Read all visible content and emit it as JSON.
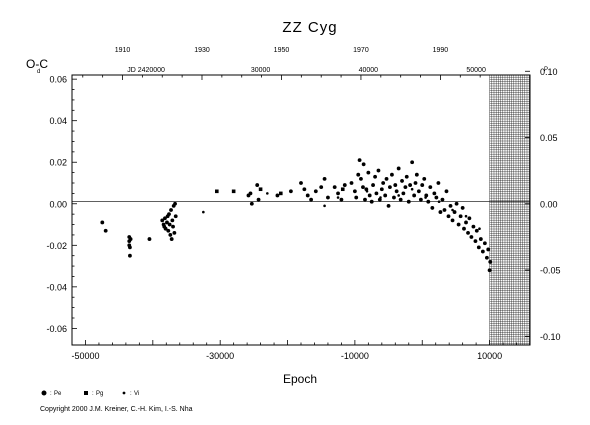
{
  "chart_data": {
    "type": "scatter",
    "title": "ZZ Cyg",
    "xlabel": "Epoch",
    "ylabel": "O-C",
    "left_unit": "d",
    "right_unit": "P",
    "xlim": [
      -52000,
      16000
    ],
    "ylim": [
      -0.068,
      0.062
    ],
    "x_ticks": [
      "-50000",
      "-30000",
      "-10000",
      "10000"
    ],
    "x_tick_values": [
      -50000,
      -30000,
      -10000,
      10000
    ],
    "y_ticks": [
      "0.06",
      "0.04",
      "0.02",
      "0.00",
      "-0.02",
      "-0.04",
      "-0.06"
    ],
    "y_tick_values": [
      0.06,
      0.04,
      0.02,
      0.0,
      -0.02,
      -0.04,
      -0.06
    ],
    "right_ticks": [
      "0.10",
      "0.05",
      "0.00",
      "-0.05",
      "-0.10"
    ],
    "right_tick_values": [
      0.0638,
      0.0319,
      0.0,
      -0.0319,
      -0.0638
    ],
    "year_ticks": [
      "1910",
      "1930",
      "1950",
      "1970",
      "1990"
    ],
    "year_tick_epochs": [
      -44500,
      -32700,
      -20900,
      -9100,
      2700
    ],
    "jd_labels": [
      "JD 2420000",
      "30000",
      "40000",
      "50000"
    ],
    "jd_label_epochs": [
      -41000,
      -24000,
      -8000,
      8000
    ],
    "hatched_region": [
      10000,
      16000
    ],
    "legend": [
      "Pe",
      "Pg",
      "Vi"
    ],
    "series": [
      {
        "name": "Pe",
        "marker": "circle",
        "values": [
          [
            -47500,
            -0.009
          ],
          [
            -47000,
            -0.013
          ],
          [
            -43500,
            -0.016
          ],
          [
            -43500,
            -0.018
          ],
          [
            -43500,
            -0.02
          ],
          [
            -43400,
            -0.021
          ],
          [
            -43400,
            -0.025
          ],
          [
            -43300,
            -0.017
          ],
          [
            -40500,
            -0.017
          ],
          [
            -38600,
            -0.008
          ],
          [
            -38400,
            -0.01
          ],
          [
            -38300,
            -0.011
          ],
          [
            -38200,
            -0.007
          ],
          [
            -38100,
            -0.012
          ],
          [
            -37900,
            -0.009
          ],
          [
            -37800,
            -0.006
          ],
          [
            -37700,
            -0.013
          ],
          [
            -37600,
            -0.005
          ],
          [
            -37500,
            -0.01
          ],
          [
            -37400,
            -0.015
          ],
          [
            -37300,
            -0.003
          ],
          [
            -37200,
            -0.017
          ],
          [
            -37100,
            -0.008
          ],
          [
            -37000,
            -0.011
          ],
          [
            -36900,
            -0.001
          ],
          [
            -36800,
            -0.014
          ],
          [
            -36700,
            0.0
          ],
          [
            -36600,
            -0.006
          ],
          [
            -25800,
            0.004
          ],
          [
            -25500,
            0.005
          ],
          [
            -25300,
            0.0
          ],
          [
            -24500,
            0.009
          ],
          [
            -24300,
            0.002
          ],
          [
            -21500,
            0.004
          ],
          [
            -19500,
            0.006
          ],
          [
            -18000,
            0.01
          ],
          [
            -17500,
            0.007
          ],
          [
            -17000,
            0.004
          ],
          [
            -16500,
            0.002
          ],
          [
            -15800,
            0.006
          ],
          [
            -15000,
            0.008
          ],
          [
            -14500,
            0.012
          ],
          [
            -14000,
            0.003
          ],
          [
            -13000,
            0.008
          ],
          [
            -12500,
            0.005
          ],
          [
            -12000,
            0.002
          ],
          [
            -11500,
            0.009
          ],
          [
            -10500,
            0.01
          ],
          [
            -10000,
            0.006
          ],
          [
            -9800,
            0.003
          ],
          [
            -9500,
            0.014
          ],
          [
            -9300,
            0.021
          ],
          [
            -9100,
            0.012
          ],
          [
            -8800,
            0.008
          ],
          [
            -8700,
            0.019
          ],
          [
            -8500,
            0.002
          ],
          [
            -8300,
            0.007
          ],
          [
            -8000,
            0.015
          ],
          [
            -7800,
            0.004
          ],
          [
            -7500,
            0.001
          ],
          [
            -7300,
            0.009
          ],
          [
            -7000,
            0.013
          ],
          [
            -6800,
            0.005
          ],
          [
            -6500,
            0.016
          ],
          [
            -6300,
            0.002
          ],
          [
            -6000,
            0.007
          ],
          [
            -5800,
            0.01
          ],
          [
            -5500,
            0.004
          ],
          [
            -5300,
            0.012
          ],
          [
            -5000,
            -0.001
          ],
          [
            -4800,
            0.008
          ],
          [
            -4500,
            0.014
          ],
          [
            -4200,
            0.003
          ],
          [
            -4000,
            0.009
          ],
          [
            -3800,
            0.006
          ],
          [
            -3500,
            0.017
          ],
          [
            -3200,
            0.002
          ],
          [
            -3000,
            0.011
          ],
          [
            -2800,
            0.005
          ],
          [
            -2500,
            0.008
          ],
          [
            -2300,
            0.013
          ],
          [
            -2000,
            0.001
          ],
          [
            -1800,
            0.009
          ],
          [
            -1500,
            0.02
          ],
          [
            -1200,
            0.004
          ],
          [
            -1000,
            0.01
          ],
          [
            -800,
            0.014
          ],
          [
            -500,
            0.006
          ],
          [
            -200,
            0.002
          ],
          [
            0,
            0.009
          ],
          [
            300,
            0.012
          ],
          [
            600,
            0.004
          ],
          [
            900,
            0.001
          ],
          [
            1200,
            0.008
          ],
          [
            1500,
            -0.002
          ],
          [
            1800,
            0.005
          ],
          [
            2100,
            0.003
          ],
          [
            2400,
            0.01
          ],
          [
            2700,
            -0.004
          ],
          [
            3000,
            0.002
          ],
          [
            3300,
            -0.003
          ],
          [
            3600,
            0.006
          ],
          [
            3900,
            -0.006
          ],
          [
            4200,
            -0.001
          ],
          [
            4500,
            -0.008
          ],
          [
            4800,
            -0.004
          ],
          [
            5100,
            0.0
          ],
          [
            5400,
            -0.01
          ],
          [
            5700,
            -0.006
          ],
          [
            6000,
            -0.002
          ],
          [
            6200,
            -0.012
          ],
          [
            6500,
            -0.009
          ],
          [
            6800,
            -0.014
          ],
          [
            7000,
            -0.007
          ],
          [
            7300,
            -0.016
          ],
          [
            7600,
            -0.011
          ],
          [
            7900,
            -0.018
          ],
          [
            8100,
            -0.013
          ],
          [
            8400,
            -0.021
          ],
          [
            8700,
            -0.017
          ],
          [
            9000,
            -0.023
          ],
          [
            9300,
            -0.019
          ],
          [
            9600,
            -0.026
          ],
          [
            9800,
            -0.022
          ],
          [
            10000,
            -0.032
          ],
          [
            10100,
            -0.028
          ]
        ]
      },
      {
        "name": "Pg",
        "marker": "square",
        "values": [
          [
            -30500,
            0.006
          ],
          [
            -28000,
            0.006
          ],
          [
            -24000,
            0.007
          ],
          [
            -21000,
            0.005
          ],
          [
            -11800,
            0.007
          ]
        ]
      },
      {
        "name": "Vi",
        "marker": "dot",
        "values": [
          [
            -32500,
            -0.004
          ],
          [
            -23000,
            0.005
          ],
          [
            -14500,
            -0.001
          ],
          [
            -12500,
            0.003
          ],
          [
            -8200,
            0.006
          ],
          [
            -6200,
            0.003
          ],
          [
            -3500,
            0.004
          ],
          [
            -1500,
            0.007
          ],
          [
            500,
            0.003
          ],
          [
            2500,
            0.001
          ],
          [
            4500,
            -0.003
          ],
          [
            6500,
            -0.006
          ],
          [
            8500,
            -0.012
          ]
        ]
      }
    ]
  },
  "copyright": "Copyright 2000 J.M. Kreiner, C.-H. Kim, I.-S. Nha"
}
